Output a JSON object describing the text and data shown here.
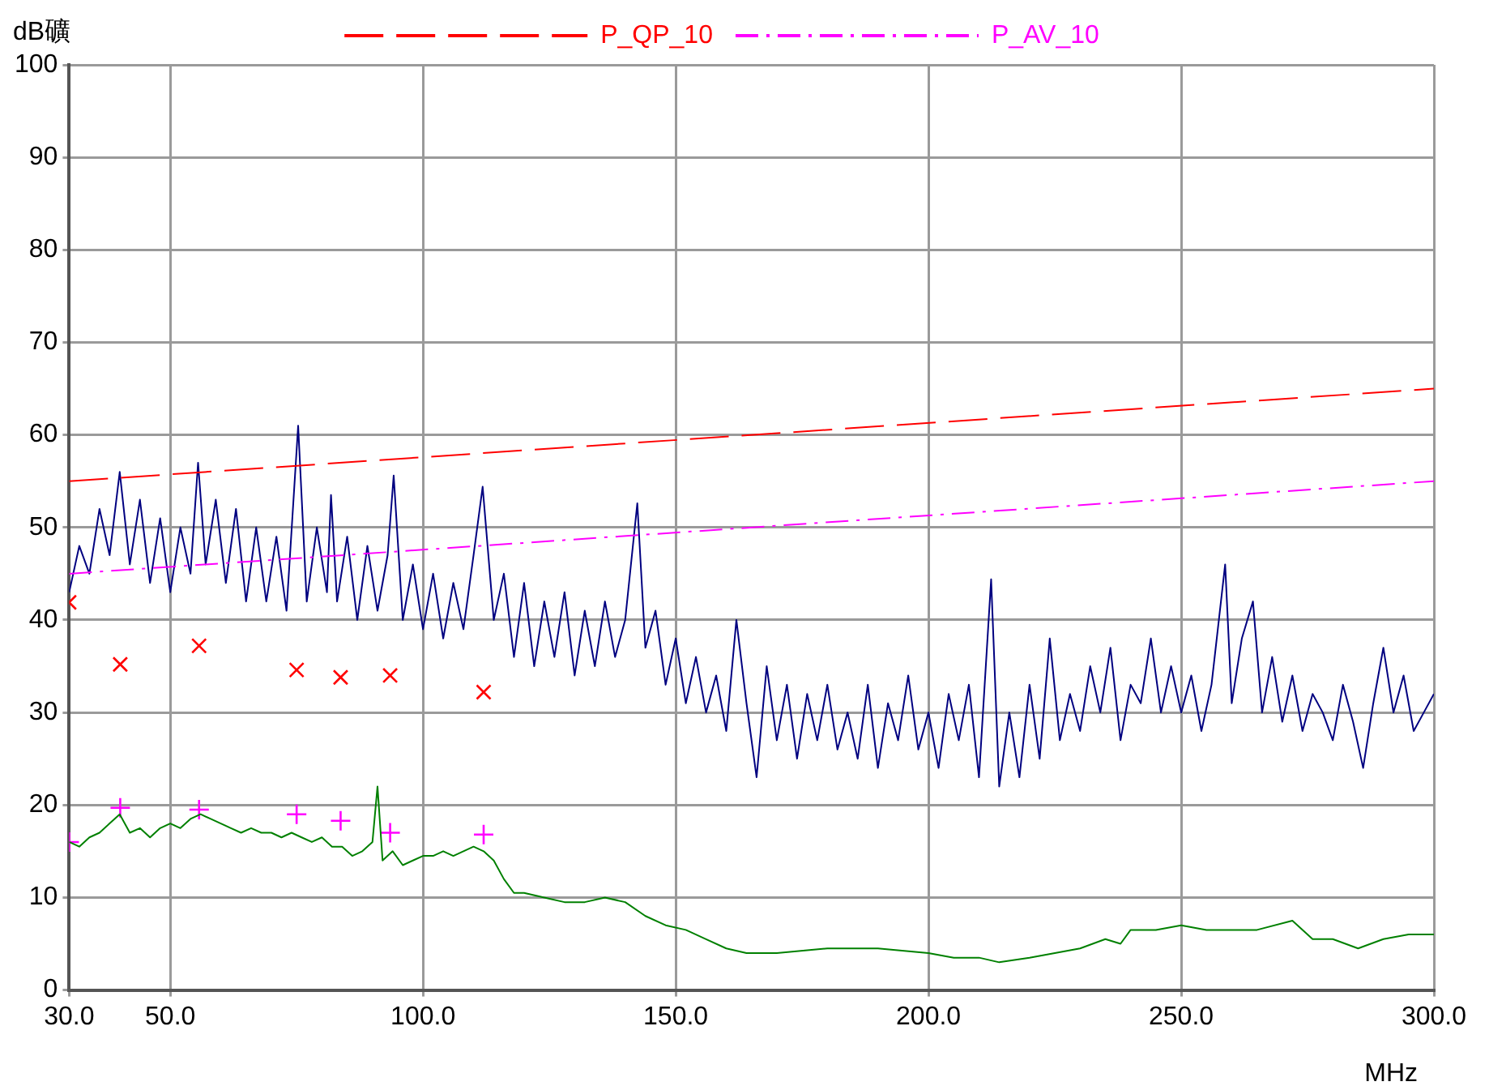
{
  "chart_data": {
    "type": "line",
    "xlabel": "MHz",
    "ylabel": "dB礦",
    "legend": "top",
    "grid": true,
    "marker": "none",
    "xlim": [
      30,
      300
    ],
    "xticks": [
      {
        "value": 30,
        "label": "30.0"
      },
      {
        "value": 50,
        "label": "50.0"
      },
      {
        "value": 100,
        "label": "100.0"
      },
      {
        "value": 150,
        "label": "150.0"
      },
      {
        "value": 200,
        "label": "200.0"
      },
      {
        "value": 250,
        "label": "250.0"
      },
      {
        "value": 300,
        "label": "300.0"
      }
    ],
    "ylim": [
      0,
      100
    ],
    "yticks": [
      0,
      10,
      20,
      30,
      40,
      50,
      60,
      70,
      80,
      90,
      100
    ],
    "series": [
      {
        "name": "P_QP_10",
        "type": "line",
        "color": "#ff0000",
        "line_style": "dashed",
        "x": [
          30,
          300
        ],
        "values": [
          55,
          65
        ]
      },
      {
        "name": "P_AV_10",
        "type": "line",
        "color": "#ff00ff",
        "line_style": "dashdot",
        "x": [
          30,
          300
        ],
        "values": [
          45,
          55
        ]
      },
      {
        "type": "line",
        "color": "#000080",
        "x": [
          30,
          32,
          34,
          36,
          38,
          40,
          42,
          44,
          46,
          48,
          50,
          52,
          54,
          55.5,
          57,
          59,
          61,
          63,
          65,
          67,
          69,
          71,
          73,
          75.3,
          77,
          79,
          81,
          81.8,
          83,
          85,
          87,
          89,
          91,
          93,
          94.2,
          96,
          98,
          100,
          102,
          104,
          106,
          108,
          110,
          111.8,
          114,
          116,
          118,
          120,
          122,
          124,
          126,
          128,
          130,
          132,
          134,
          136,
          138,
          140,
          142.4,
          144,
          146,
          148,
          150,
          152,
          154,
          156,
          158,
          160,
          162,
          164,
          166,
          168,
          170,
          172,
          174,
          176,
          178,
          180,
          182,
          184,
          186,
          188,
          190,
          192,
          194,
          196,
          198,
          200,
          202,
          204,
          206,
          208,
          210,
          212.4,
          214,
          216,
          218,
          220,
          222,
          224,
          226,
          228,
          230,
          232,
          234,
          236,
          238,
          240,
          242,
          244,
          246,
          248,
          250,
          252,
          254,
          256,
          258.7,
          260,
          262,
          264.2,
          266,
          268,
          270,
          272,
          274,
          276,
          278,
          280,
          282,
          284,
          286,
          288,
          290,
          292,
          294,
          296,
          298,
          300
        ],
        "values": [
          43,
          48,
          45,
          52,
          47,
          56,
          46,
          53,
          44,
          51,
          43,
          50,
          45,
          57,
          46,
          53,
          44,
          52,
          42,
          50,
          42,
          49,
          41,
          61,
          42,
          50,
          43,
          53.5,
          42,
          49,
          40,
          48,
          41,
          47,
          55.6,
          40,
          46,
          39,
          45,
          38,
          44,
          39,
          47,
          54.4,
          40,
          45,
          36,
          44,
          35,
          42,
          36,
          43,
          34,
          41,
          35,
          42,
          36,
          40,
          52.6,
          37,
          41,
          33,
          38,
          31,
          36,
          30,
          34,
          28,
          40,
          31,
          23,
          35,
          27,
          33,
          25,
          32,
          27,
          33,
          26,
          30,
          25,
          33,
          24,
          31,
          27,
          34,
          26,
          30,
          24,
          32,
          27,
          33,
          23,
          44.4,
          22,
          30,
          23,
          33,
          25,
          38,
          27,
          32,
          28,
          35,
          30,
          37,
          27,
          33,
          31,
          38,
          30,
          35,
          30,
          34,
          28,
          33,
          46,
          31,
          38,
          42,
          30,
          36,
          29,
          34,
          28,
          32,
          30,
          27,
          33,
          29,
          24,
          31,
          37,
          30,
          34,
          28,
          30,
          32
        ]
      },
      {
        "type": "line",
        "color": "#008000",
        "x": [
          30,
          32,
          34,
          36,
          38,
          40,
          42,
          44,
          46,
          48,
          50,
          52,
          54,
          56,
          58,
          60,
          62,
          64,
          66,
          68,
          70,
          72,
          74,
          76,
          78,
          80,
          82,
          84,
          86,
          88,
          90,
          91,
          92,
          94,
          96,
          98,
          100,
          102,
          104,
          106,
          108,
          110,
          112,
          114,
          116,
          118,
          120,
          124,
          128,
          132,
          136,
          140,
          144,
          148,
          152,
          156,
          160,
          164,
          170,
          180,
          190,
          200,
          205,
          210,
          214,
          220,
          225,
          230,
          235,
          238,
          240,
          245,
          250,
          255,
          260,
          265,
          272,
          276,
          280,
          285,
          290,
          295,
          300
        ],
        "values": [
          16,
          15.5,
          16.5,
          17,
          18,
          19,
          17,
          17.5,
          16.5,
          17.5,
          18,
          17.5,
          18.5,
          19,
          18.5,
          18,
          17.5,
          17,
          17.5,
          17,
          17,
          16.5,
          17,
          16.5,
          16,
          16.5,
          15.5,
          15.5,
          14.5,
          15,
          16,
          22,
          14,
          15,
          13.5,
          14,
          14.5,
          14.5,
          15,
          14.5,
          15,
          15.5,
          15,
          14,
          12,
          10.5,
          10.5,
          10,
          9.5,
          9.5,
          10,
          9.5,
          8,
          7,
          6.5,
          5.5,
          4.5,
          4,
          4,
          4.5,
          4.5,
          4,
          3.5,
          3.5,
          3,
          3.5,
          4,
          4.5,
          5.5,
          5,
          6.5,
          6.5,
          7,
          6.5,
          6.5,
          6.5,
          7.5,
          5.5,
          5.5,
          4.5,
          5.5,
          6,
          6
        ]
      },
      {
        "type": "scatter",
        "color": "#ff0000",
        "marker": "x",
        "x": [
          30,
          40.1,
          55.7,
          75,
          83.7,
          93.5,
          112
        ],
        "values": [
          41.9,
          35.2,
          37.2,
          34.6,
          33.8,
          34,
          32.2
        ]
      },
      {
        "type": "scatter",
        "color": "#ff00ff",
        "marker": "cross",
        "x": [
          30,
          40.1,
          55.7,
          75,
          83.7,
          93.5,
          112
        ],
        "values": [
          16,
          19.7,
          19.5,
          19,
          18.3,
          17,
          16.8
        ]
      }
    ]
  }
}
